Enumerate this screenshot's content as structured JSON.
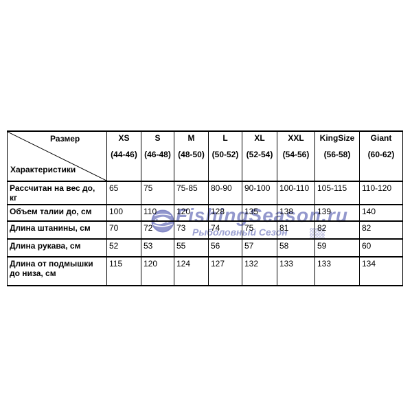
{
  "watermark": {
    "brand": "FishingSeason.ru",
    "subtitle": "Рыболовный Сезон",
    "color": "#8a8fc9"
  },
  "size_chart": {
    "corner": {
      "top_label": "Размер",
      "bottom_label": "Характеристики"
    },
    "columns": [
      {
        "size": "XS",
        "range": "(44-46)"
      },
      {
        "size": "S",
        "range": "(46-48)"
      },
      {
        "size": "M",
        "range": "(48-50)"
      },
      {
        "size": "L",
        "range": "(50-52)"
      },
      {
        "size": "XL",
        "range": "(52-54)"
      },
      {
        "size": "XXL",
        "range": "(54-56)"
      },
      {
        "size": "KingSize",
        "range": "(56-58)"
      },
      {
        "size": "Giant",
        "range": "(60-62)"
      }
    ],
    "rows": [
      {
        "label": "Рассчитан на вес до, кг",
        "values": [
          "65",
          "75",
          "75-85",
          "80-90",
          "90-100",
          "100-110",
          "105-115",
          "110-120"
        ]
      },
      {
        "label": "Объем талии до, см",
        "values": [
          "100",
          "110",
          "120",
          "128",
          "135",
          "138",
          "139",
          "140"
        ]
      },
      {
        "label": "Длина штанины, см",
        "values": [
          "70",
          "72",
          "73",
          "74",
          "75",
          "81",
          "82",
          "82"
        ]
      },
      {
        "label": "Длина рукава, см",
        "values": [
          "52",
          "53",
          "55",
          "56",
          "57",
          "58",
          "59",
          "60"
        ]
      },
      {
        "label": "Длина от подмышки до низа, см",
        "values": [
          "115",
          "120",
          "124",
          "127",
          "132",
          "133",
          "133",
          "134"
        ]
      }
    ]
  }
}
